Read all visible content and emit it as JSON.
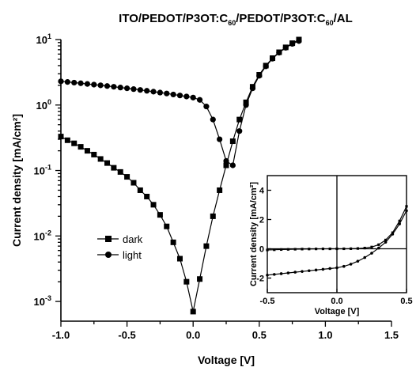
{
  "chart_data": [
    {
      "type": "line",
      "title": "ITO/PEDOT/P3OT:C60/PEDOT/P3OT:C60/AL",
      "xlabel": "Voltage [V]",
      "ylabel": "Current density [mA/cm²]",
      "xlim": [
        -1.0,
        1.5
      ],
      "ylim": [
        0.0005,
        10
      ],
      "yscale": "log",
      "xticks": [
        "-1.0",
        "-0.5",
        "0.0",
        "0.5",
        "1.0",
        "1.5"
      ],
      "legend": {
        "placement": "center-left",
        "entries": [
          "dark",
          "light"
        ]
      },
      "series": [
        {
          "name": "dark",
          "marker": "square",
          "x": [
            -1.0,
            -0.95,
            -0.9,
            -0.85,
            -0.8,
            -0.75,
            -0.7,
            -0.65,
            -0.6,
            -0.55,
            -0.5,
            -0.45,
            -0.4,
            -0.35,
            -0.3,
            -0.25,
            -0.2,
            -0.15,
            -0.1,
            -0.05,
            0.0,
            0.05,
            0.1,
            0.15,
            0.2,
            0.25,
            0.3,
            0.35,
            0.4,
            0.45,
            0.5,
            0.55,
            0.6,
            0.65,
            0.7,
            0.75,
            0.8
          ],
          "y": [
            0.33,
            0.29,
            0.26,
            0.23,
            0.2,
            0.175,
            0.15,
            0.13,
            0.11,
            0.095,
            0.08,
            0.065,
            0.05,
            0.04,
            0.03,
            0.021,
            0.014,
            0.008,
            0.0045,
            0.002,
            0.0007,
            0.0022,
            0.007,
            0.02,
            0.05,
            0.12,
            0.28,
            0.6,
            1.1,
            1.9,
            2.9,
            4.0,
            5.2,
            6.4,
            7.6,
            8.8,
            10.0
          ]
        },
        {
          "name": "light",
          "marker": "circle",
          "x": [
            -1.0,
            -0.95,
            -0.9,
            -0.85,
            -0.8,
            -0.75,
            -0.7,
            -0.65,
            -0.6,
            -0.55,
            -0.5,
            -0.45,
            -0.4,
            -0.35,
            -0.3,
            -0.25,
            -0.2,
            -0.15,
            -0.1,
            -0.05,
            0.0,
            0.05,
            0.1,
            0.15,
            0.2,
            0.25,
            0.3,
            0.35,
            0.4,
            0.45,
            0.5,
            0.55,
            0.6,
            0.65,
            0.7,
            0.75,
            0.8
          ],
          "y": [
            2.3,
            2.25,
            2.2,
            2.15,
            2.1,
            2.05,
            2.0,
            1.95,
            1.9,
            1.85,
            1.8,
            1.75,
            1.7,
            1.65,
            1.6,
            1.55,
            1.5,
            1.45,
            1.4,
            1.35,
            1.3,
            1.2,
            0.95,
            0.6,
            0.3,
            0.14,
            0.12,
            0.4,
            1.0,
            1.8,
            2.8,
            3.9,
            5.1,
            6.3,
            7.5,
            8.6,
            9.5
          ]
        }
      ]
    },
    {
      "type": "line",
      "title": "",
      "xlabel": "Voltage [V]",
      "ylabel": "Current density [mA/cm²]",
      "xlim": [
        -0.5,
        0.5
      ],
      "ylim": [
        -3,
        5
      ],
      "xticks": [
        "-0.5",
        "0.0",
        "0.5"
      ],
      "yticks": [
        "-2",
        "0",
        "2",
        "4"
      ],
      "series": [
        {
          "name": "dark",
          "marker": "square",
          "x": [
            -0.5,
            -0.45,
            -0.4,
            -0.35,
            -0.3,
            -0.25,
            -0.2,
            -0.15,
            -0.1,
            -0.05,
            0.0,
            0.05,
            0.1,
            0.15,
            0.2,
            0.25,
            0.3,
            0.35,
            0.4,
            0.45,
            0.5
          ],
          "y": [
            -0.08,
            -0.065,
            -0.05,
            -0.04,
            -0.03,
            -0.02,
            -0.014,
            -0.008,
            -0.004,
            -0.002,
            0.0,
            0.002,
            0.007,
            0.02,
            0.05,
            0.12,
            0.28,
            0.6,
            1.1,
            1.9,
            2.9
          ]
        },
        {
          "name": "light",
          "marker": "circle",
          "x": [
            -0.5,
            -0.45,
            -0.4,
            -0.35,
            -0.3,
            -0.25,
            -0.2,
            -0.15,
            -0.1,
            -0.05,
            0.0,
            0.05,
            0.1,
            0.15,
            0.2,
            0.25,
            0.3,
            0.35,
            0.4,
            0.45,
            0.5
          ],
          "y": [
            -1.8,
            -1.75,
            -1.7,
            -1.65,
            -1.6,
            -1.55,
            -1.5,
            -1.45,
            -1.4,
            -1.35,
            -1.3,
            -1.2,
            -1.05,
            -0.85,
            -0.6,
            -0.3,
            0.05,
            0.45,
            1.0,
            1.7,
            2.6
          ]
        }
      ]
    }
  ]
}
